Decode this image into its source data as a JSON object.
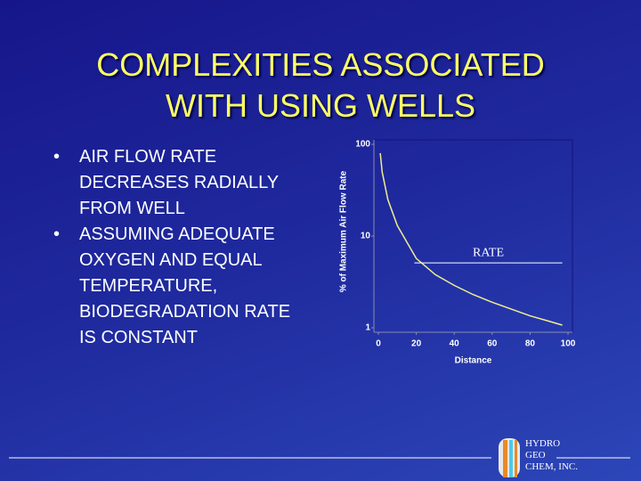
{
  "slide": {
    "title": [
      "COMPLEXITIES ASSOCIATED",
      "WITH USING WELLS"
    ],
    "bullets": [
      "AIR FLOW RATE DECREASES RADIALLY FROM WELL",
      "ASSUMING ADEQUATE OXYGEN AND EQUAL TEMPERATURE, BIODEGRADATION RATE IS CONSTANT"
    ],
    "logo_text": [
      "HYDRO",
      "GEO",
      "CHEM, INC."
    ]
  },
  "chart_data": {
    "type": "line",
    "x_label": "Distance",
    "y_label": "% of Maximum Air Flow Rate",
    "log_y": true,
    "xlim": [
      0,
      100
    ],
    "xticks": [
      0,
      20,
      40,
      60,
      80,
      100
    ],
    "ylim": [
      1,
      100
    ],
    "yticks": [
      1,
      10,
      100
    ],
    "series": [
      {
        "color": "#f2ee8c",
        "x": [
          1,
          2,
          5,
          10,
          20,
          30,
          40,
          50,
          60,
          70,
          80,
          90,
          97
        ],
        "values": [
          80,
          50,
          25,
          13,
          5.7,
          3.8,
          2.9,
          2.3,
          1.9,
          1.6,
          1.35,
          1.18,
          1.07
        ]
      }
    ],
    "annotation": {
      "text": "RATE",
      "y": 5.1,
      "x": [
        19,
        97
      ],
      "color": "#ffffff"
    }
  }
}
